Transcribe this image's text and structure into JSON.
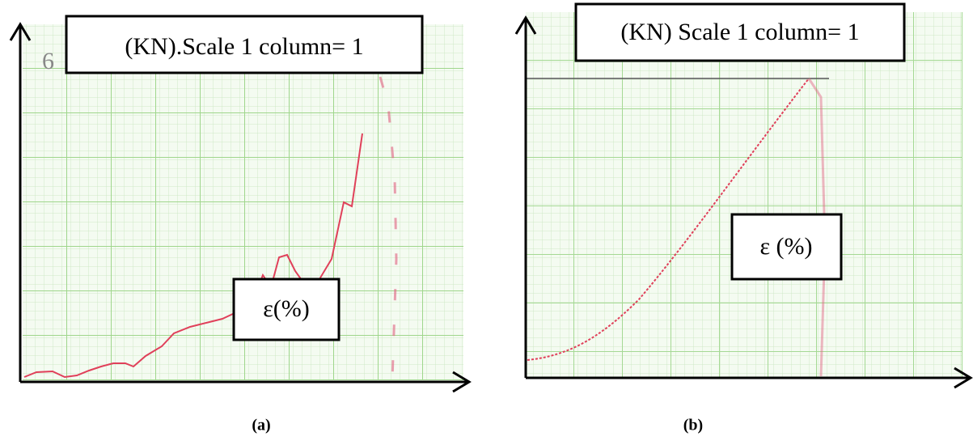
{
  "panels": [
    {
      "header": "(KN).Scale 1 column= 1",
      "axis_label": "ε(%)",
      "caption": "(a)",
      "note": "6"
    },
    {
      "header": "(KN) Scale 1 column= 1",
      "axis_label": "ε (%)",
      "caption": "(b)"
    }
  ]
}
